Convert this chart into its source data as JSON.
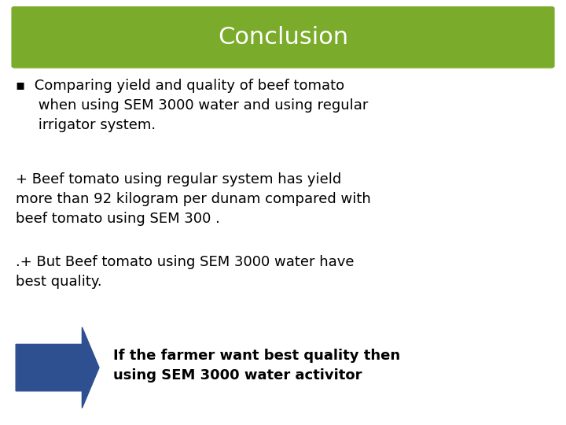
{
  "title": "Conclusion",
  "title_bg_color": "#7aab2a",
  "title_text_color": "#ffffff",
  "bg_color": "#ffffff",
  "bullet_text": "▪  Comparing yield and quality of beef tomato\n     when using SEM 3000 water and using regular\n     irrigator system.",
  "body1": "+ Beef tomato using regular system has yield\nmore than 92 kilogram per dunam compared with\nbeef tomato using SEM 300 .",
  "body2": ".+ But Beef tomato using SEM 3000 water have\nbest quality.",
  "arrow_color": "#2e5090",
  "callout_line1": "If the farmer want best quality then",
  "callout_line2": "using SEM 3000 water activitor",
  "callout_text_color": "#000000",
  "border_color": "#8ab833",
  "title_fontsize": 22,
  "body_fontsize": 13,
  "callout_fontsize": 13
}
